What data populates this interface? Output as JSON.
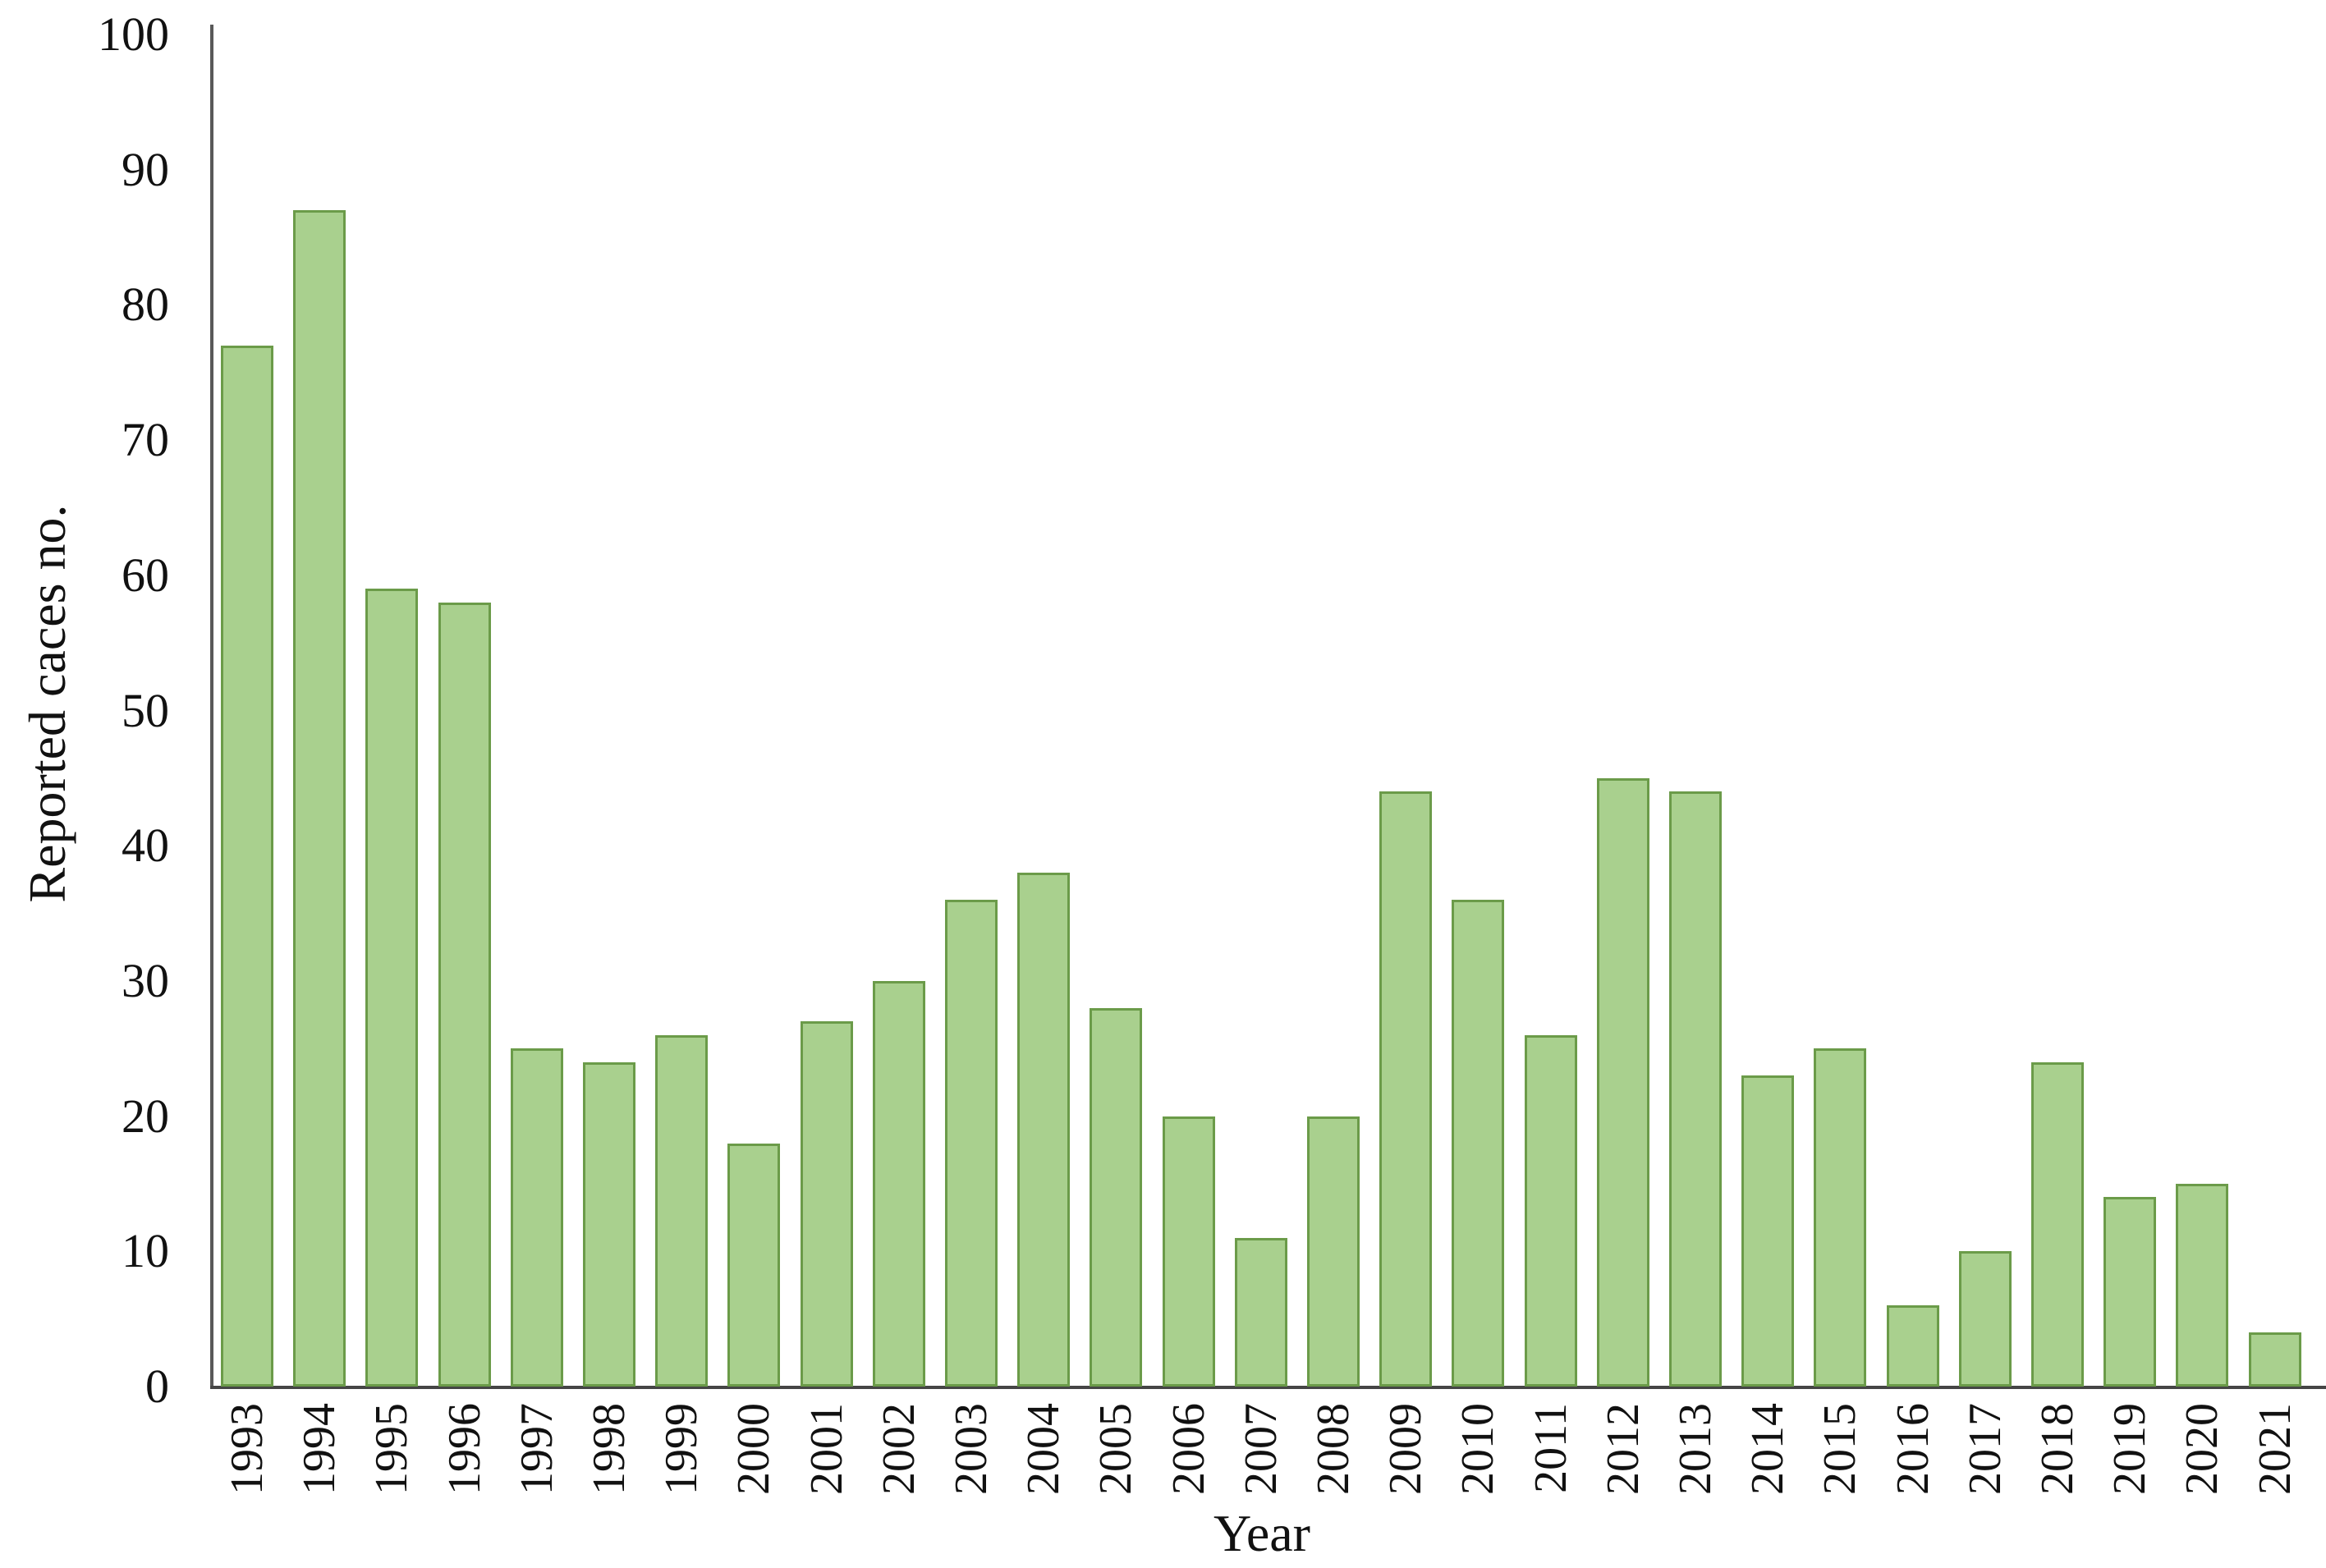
{
  "chart_data": {
    "type": "bar",
    "title": "",
    "xlabel": "Year",
    "ylabel": "Reported caces no.",
    "categories": [
      "1993",
      "1994",
      "1995",
      "1996",
      "1997",
      "1998",
      "1999",
      "2000",
      "2001",
      "2002",
      "2003",
      "2004",
      "2005",
      "2006",
      "2007",
      "2008",
      "2009",
      "2010",
      "2011",
      "2012",
      "2013",
      "2014",
      "2015",
      "2016",
      "2017",
      "2018",
      "2019",
      "2020",
      "2021"
    ],
    "values": [
      77,
      87,
      59,
      58,
      25,
      24,
      26,
      18,
      27,
      30,
      36,
      38,
      28,
      20,
      11,
      20,
      44,
      36,
      26,
      45,
      44,
      23,
      25,
      6,
      10,
      24,
      14,
      15,
      4
    ],
    "ylim": [
      0,
      100
    ],
    "ytick_step": 10,
    "grid": false,
    "legend": "none",
    "bar_fill_color": "#a9d08e",
    "bar_border_color": "#6b9b49",
    "axis_line_color": "#595959",
    "text_color": "#111111"
  }
}
